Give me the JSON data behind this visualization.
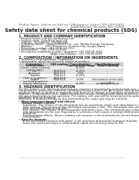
{
  "title": "Safety data sheet for chemical products (SDS)",
  "header_left": "Product Name: Lithium Ion Battery Cell",
  "header_right_line1": "Substance Control: SDS-049-00010",
  "header_right_line2": "Establishment / Revision: Dec.7.2016",
  "section1_title": "1. PRODUCT AND COMPANY IDENTIFICATION",
  "section1_lines": [
    "• Product name: Lithium Ion Battery Cell",
    "• Product code: Cylindrical-type cell",
    "  (18650U, 26V18650U, 26V18650A)",
    "• Company name:    Sanyo Electric Co., Ltd., Mobile Energy Company",
    "• Address:              2001 Kamimura, Sumoto City, Hyogo, Japan",
    "• Telephone number: +81-(799)-24-4111",
    "• Fax number:   +81-1799-26-4121",
    "• Emergency telephone number (daytime): +81-799-26-3562",
    "                                    (Night and holiday): +81-799-26-4101"
  ],
  "section2_title": "2. COMPOSITION / INFORMATION ON INGREDIENTS",
  "section2_intro": "• Substance or preparation: Preparation",
  "section2_sub": "• Information about the chemical nature of product:",
  "table_col_headers1": [
    "Component /",
    "CAS number /",
    "Concentration /",
    "Classification and"
  ],
  "table_col_headers2": [
    "Several name",
    "",
    "Concentration range",
    "hazard labeling"
  ],
  "table_col_headers3": [
    "",
    "",
    "(30-50%)",
    ""
  ],
  "table_rows": [
    [
      "Lithium cobalt tantalate",
      "-",
      "30-50%",
      "-"
    ],
    [
      "(LiMnCo2PBO4)",
      "",
      "",
      ""
    ],
    [
      "Iron",
      "7439-89-6",
      "10-20%",
      "-"
    ],
    [
      "Aluminum",
      "7429-90-5",
      "2-6%",
      "-"
    ],
    [
      "Graphite",
      "7782-42-5",
      "10-20%",
      "-"
    ],
    [
      "(flake or graphite-I)",
      "7440-44-0",
      "",
      ""
    ],
    [
      "(artificial graphite-I)",
      "",
      "",
      ""
    ],
    [
      "Copper",
      "7440-50-8",
      "5-15%",
      "Sensitization of the skin"
    ],
    [
      "",
      "",
      "",
      "group No.2"
    ],
    [
      "Organic electrolyte",
      "-",
      "10-20%",
      "Inflammable liquid"
    ]
  ],
  "section3_title": "3. HAZARDS IDENTIFICATION",
  "section3_lines": [
    "For this battery cell, chemical materials are stored in a hermetically-sealed metal case, designed to withstand",
    "temperatures, pressures, corrosive conditions during normal use. As a result, during normal use, there is no",
    "physical danger of ignition or explosion and there is no danger of hazardous material leakage.",
    "However, if exposed to a fire, added mechanical shocks, decomposed, when an electric short-circuit may occur,",
    "the gas release vent can be operated. The battery cell case will be breached at fire patterns, hazardous",
    "materials may be released.",
    "Moreover, if heated strongly by the surrounding fire, some gas may be emitted."
  ],
  "s3_bullet1": "• Most important hazard and effects:",
  "s3_human": "Human health effects:",
  "s3_human_lines": [
    "Inhalation: The release of the electrolyte has an anesthetic action and stimulates in respiratory tract.",
    "Skin contact: The release of the electrolyte stimulates a skin. The electrolyte skin contact causes a",
    "sore and stimulation on the skin.",
    "Eye contact: The release of the electrolyte stimulates eyes. The electrolyte eye contact causes a sore",
    "and stimulation on the eye. Especially, a substance that causes a strong inflammation of the eye is",
    "contained.",
    "Environmental effects: Since a battery cell remains in the environment, do not throw out it into the",
    "environment."
  ],
  "s3_bullet2": "• Specific hazards:",
  "s3_specific_lines": [
    "If the electrolyte contacts with water, it will generate detrimental hydrogen fluoride.",
    "Since the used electrolyte is inflammable liquid, do not bring close to fire."
  ],
  "footer_line": true,
  "bg_color": "#ffffff",
  "text_color": "#1a1a1a",
  "gray_color": "#888888",
  "table_header_bg": "#d0d0d0",
  "table_row_bg1": "#f0f0f0",
  "table_row_bg2": "#ffffff"
}
